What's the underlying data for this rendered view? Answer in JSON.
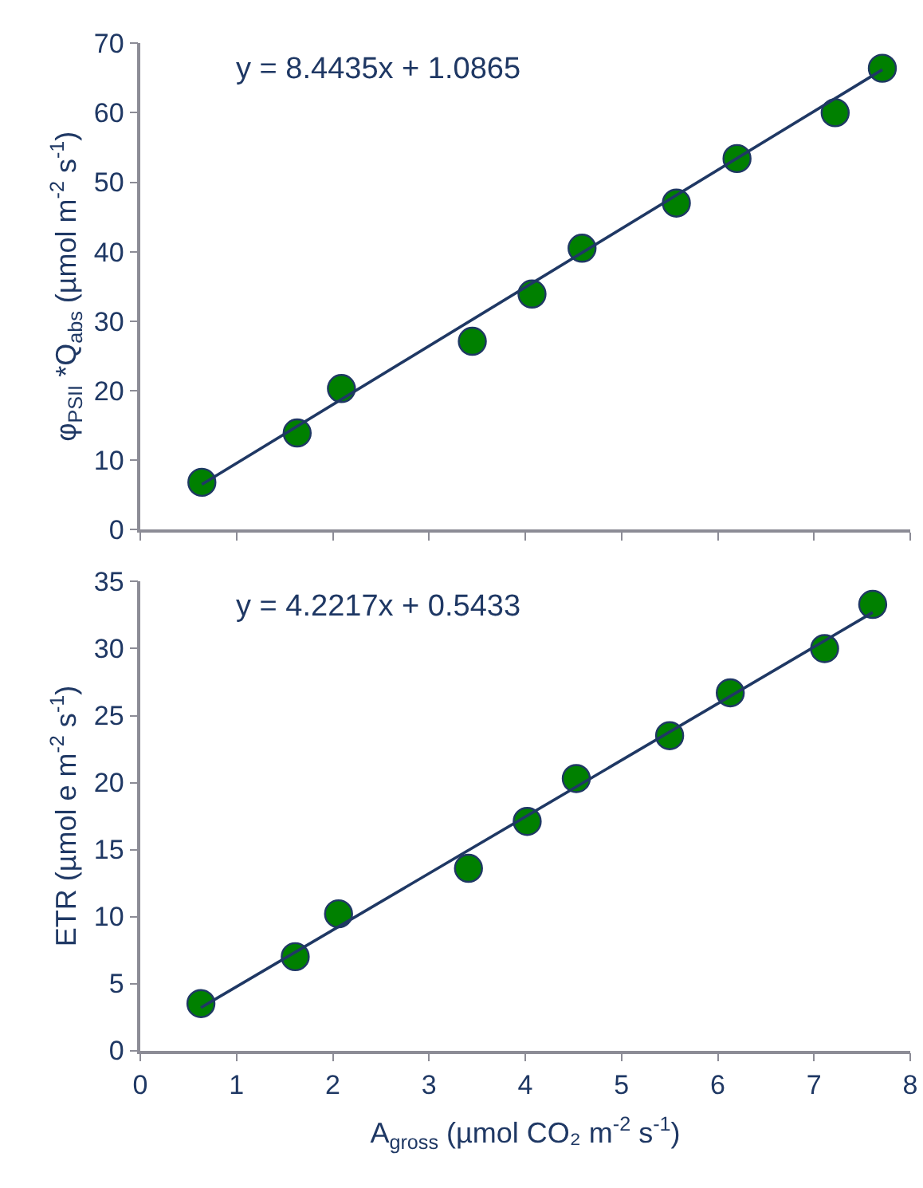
{
  "chart_data": [
    {
      "type": "scatter",
      "ylabel": "φ$_{PSII}$ *Q$_{abs}$ (µmol m$^{-2}$ s$^{-1}$)",
      "annotations": [
        "y = 8.4435x + 1.0865"
      ],
      "xlim": [
        0,
        8
      ],
      "xticks": [
        0,
        1,
        2,
        3,
        4,
        5,
        6,
        7,
        8
      ],
      "ylim": [
        0,
        70
      ],
      "yticks": [
        0,
        10,
        20,
        30,
        40,
        50,
        60,
        70
      ],
      "tick_labels": "y",
      "legend": false,
      "series": [
        {
          "marker": "circle",
          "color": "#008000",
          "x": [
            0.64,
            1.63,
            2.09,
            3.45,
            4.07,
            4.59,
            5.57,
            6.2,
            7.22,
            7.71
          ],
          "values": [
            6.8,
            13.9,
            20.3,
            27.1,
            33.9,
            40.5,
            47.0,
            53.4,
            60.0,
            66.4
          ]
        },
        {
          "type": "line",
          "color": "#1f3864",
          "x": [
            0.64,
            7.71
          ],
          "values": [
            6.5,
            66.2
          ]
        }
      ]
    },
    {
      "type": "scatter",
      "xlabel": "A$_{gross}$ (µmol CO₂ m$^{-2}$ s$^{-1}$)",
      "ylabel": "ETR (µmol e m$^{-2}$ s$^{-1}$)",
      "annotations": [
        "y = 4.2217x + 0.5433"
      ],
      "xlim": [
        0,
        8
      ],
      "xticks": [
        0,
        1,
        2,
        3,
        4,
        5,
        6,
        7,
        8
      ],
      "ylim": [
        0,
        35
      ],
      "yticks": [
        0,
        5,
        10,
        15,
        20,
        25,
        30,
        35
      ],
      "legend": false,
      "series": [
        {
          "marker": "circle",
          "color": "#008000",
          "x": [
            0.63,
            1.61,
            2.06,
            3.41,
            4.02,
            4.53,
            5.5,
            6.13,
            7.11,
            7.61
          ],
          "values": [
            3.5,
            7.0,
            10.2,
            13.6,
            17.1,
            20.3,
            23.5,
            26.7,
            30.0,
            33.3
          ]
        },
        {
          "type": "line",
          "color": "#1f3864",
          "x": [
            0.63,
            7.61
          ],
          "values": [
            3.2,
            32.7
          ]
        }
      ]
    }
  ]
}
